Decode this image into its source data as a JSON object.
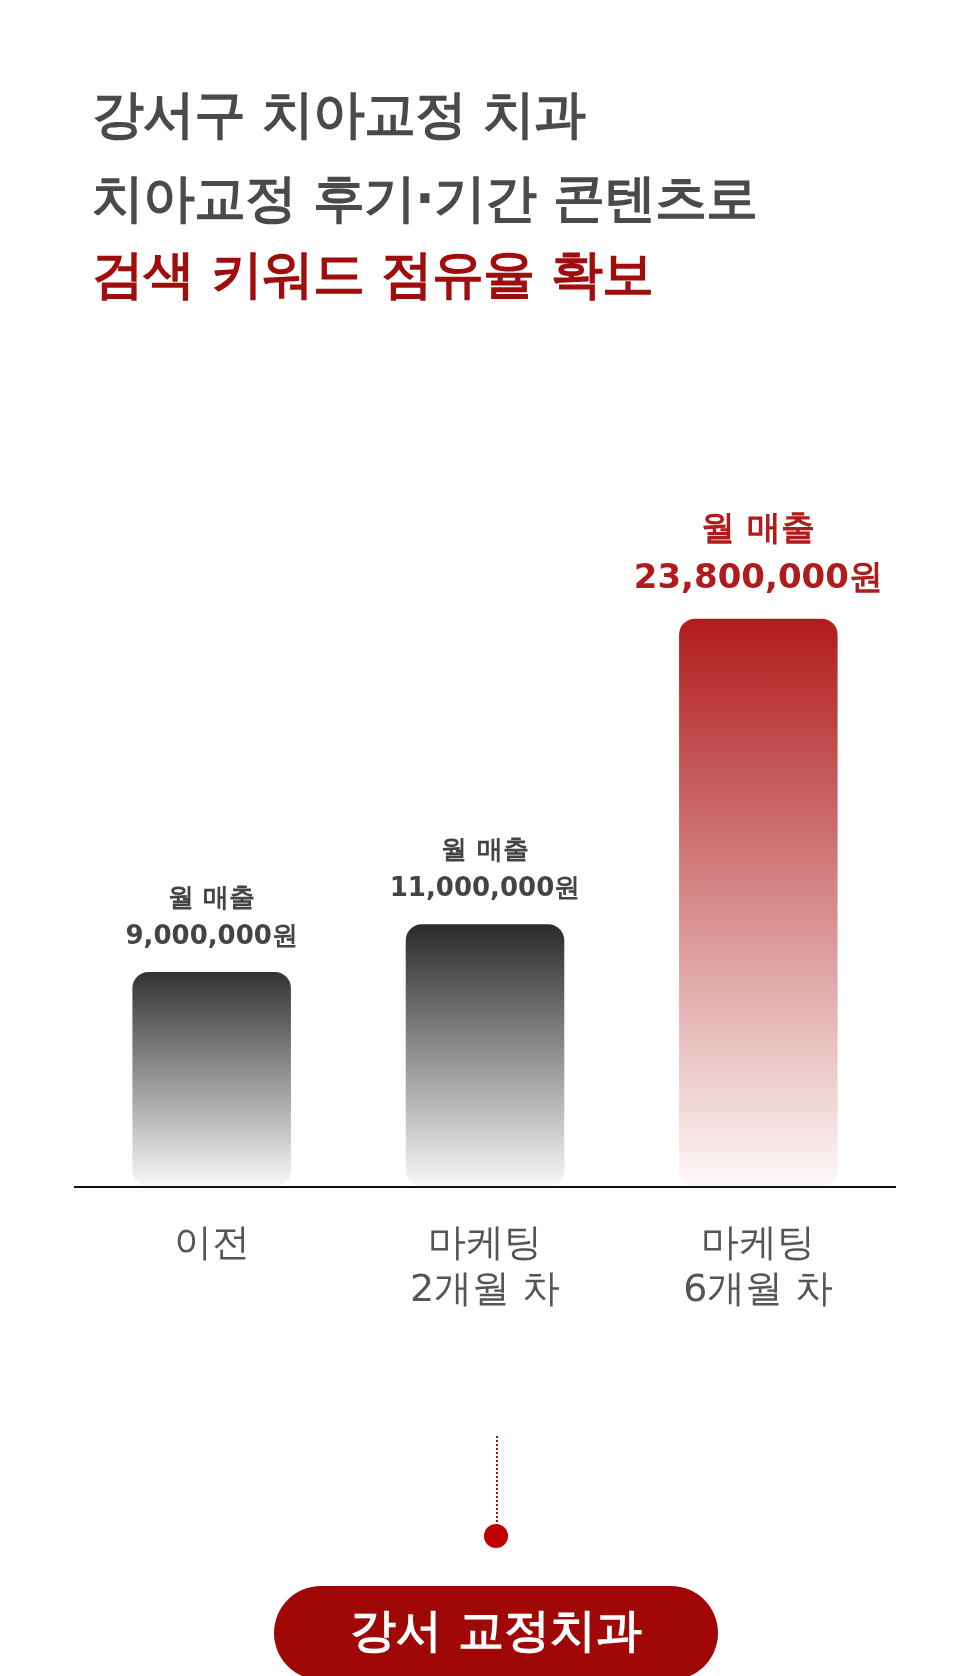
{
  "chart_data": {
    "type": "bar",
    "title": "강서구 치아교정 치과\n치아교정 후기·기간 콘텐츠로",
    "subtitle": "검색 키워드 점유율 확보",
    "categories": [
      "이전",
      "마케팅\n2개월 차",
      "마케팅\n6개월 차"
    ],
    "values": [
      9000000,
      11000000,
      23800000
    ],
    "colors": [
      "#333333",
      "#2a2a2a",
      "#b01c1c"
    ],
    "value_labels": [
      "월 매출\n9,000,000원",
      "월 매출\n11,000,000원",
      "월 매출\n23,800,000원"
    ],
    "annotations": [
      "강서 교정치과"
    ],
    "grid": false,
    "legend": false
  }
}
